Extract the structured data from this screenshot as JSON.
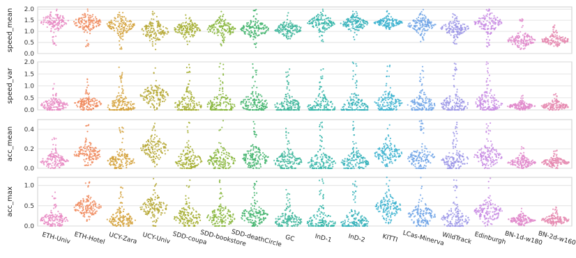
{
  "chart_data": {
    "type": "scatter",
    "style": "swarm/strip plot per dataset",
    "grid": true,
    "categories": [
      "ETH-Univ",
      "ETH-Hotel",
      "UCY-Zara",
      "UCY-Univ",
      "SDD-coupa",
      "SDD-bookstore",
      "SDD-deathCircle",
      "GC",
      "InD-1",
      "InD-2",
      "KITTI",
      "LCas-Minerva",
      "WildTrack",
      "Edinburgh",
      "BN-1d-w180",
      "BN-2d-w160"
    ],
    "colors": [
      "#e78ac3",
      "#f08a5d",
      "#d4a13a",
      "#b5a733",
      "#a3ad2e",
      "#86b53a",
      "#3fb36b",
      "#3cb59a",
      "#33b5a8",
      "#33b0b8",
      "#3bb2cf",
      "#6fa3e6",
      "#9b95e6",
      "#c88be3",
      "#e08acb",
      "#e58ab0"
    ],
    "panels": [
      {
        "ylabel": "speed_mean",
        "ylim": [
          0,
          2.1
        ],
        "yticks": [
          "0.0",
          "0.5",
          "1.0",
          "1.5",
          "2.0"
        ],
        "ytick_values": [
          0,
          0.5,
          1.0,
          1.5,
          2.0
        ],
        "medians": [
          1.45,
          1.4,
          1.3,
          1.0,
          1.1,
          1.1,
          1.1,
          1.1,
          1.4,
          1.35,
          1.4,
          1.3,
          1.15,
          1.4,
          0.6,
          0.6
        ],
        "lows": [
          0.3,
          0.3,
          0.2,
          0.1,
          0.2,
          0.2,
          0.2,
          0.6,
          0.5,
          0.6,
          1.1,
          0.5,
          0.4,
          0.3,
          0.2,
          0.3
        ],
        "highs": [
          2.0,
          2.0,
          2.0,
          2.0,
          1.8,
          2.0,
          2.0,
          1.9,
          2.0,
          2.0,
          2.0,
          2.0,
          1.8,
          2.0,
          1.6,
          1.3
        ]
      },
      {
        "ylabel": "speed_var",
        "ylim": [
          0,
          2.0
        ],
        "yticks": [
          "0.0",
          "0.5",
          "1.0",
          "1.5",
          "2.0"
        ],
        "ytick_values": [
          0,
          0.5,
          1.0,
          1.5,
          2.0
        ],
        "medians": [
          0.2,
          0.25,
          0.15,
          0.6,
          0.2,
          0.2,
          0.25,
          0.15,
          0.1,
          0.1,
          0.25,
          0.2,
          0.2,
          0.3,
          0.15,
          0.15
        ],
        "lows": [
          0.0,
          0.0,
          0.0,
          0.0,
          0.0,
          0.0,
          0.0,
          0.0,
          0.0,
          0.0,
          0.0,
          0.0,
          0.0,
          0.0,
          0.0,
          0.0
        ],
        "highs": [
          1.2,
          1.3,
          1.8,
          2.0,
          1.9,
          2.0,
          2.0,
          1.7,
          2.0,
          2.0,
          1.9,
          1.9,
          2.0,
          2.0,
          0.6,
          0.8
        ]
      },
      {
        "ylabel": "acc_mean",
        "ylim": [
          0,
          0.5
        ],
        "yticks": [
          "0.0",
          "0.2",
          "0.4"
        ],
        "ytick_values": [
          0,
          0.2,
          0.4
        ],
        "medians": [
          0.07,
          0.15,
          0.07,
          0.2,
          0.08,
          0.08,
          0.1,
          0.07,
          0.05,
          0.05,
          0.15,
          0.1,
          0.08,
          0.12,
          0.06,
          0.06
        ],
        "lows": [
          0.0,
          0.03,
          0.0,
          0.0,
          0.0,
          0.0,
          0.0,
          0.0,
          0.0,
          0.0,
          0.02,
          0.0,
          0.0,
          0.0,
          0.0,
          0.0
        ],
        "highs": [
          0.33,
          0.46,
          0.43,
          0.5,
          0.5,
          0.5,
          0.5,
          0.44,
          0.5,
          0.5,
          0.5,
          0.5,
          0.5,
          0.5,
          0.22,
          0.2
        ]
      },
      {
        "ylabel": "acc_max",
        "ylim": [
          0,
          1.2
        ],
        "yticks": [
          "0.0",
          "0.5",
          "1.0"
        ],
        "ytick_values": [
          0,
          0.5,
          1.0
        ],
        "medians": [
          0.15,
          0.45,
          0.15,
          0.45,
          0.2,
          0.2,
          0.25,
          0.12,
          0.08,
          0.08,
          0.45,
          0.25,
          0.15,
          0.35,
          0.15,
          0.15
        ],
        "lows": [
          0.0,
          0.1,
          0.0,
          0.0,
          0.0,
          0.0,
          0.0,
          0.0,
          0.0,
          0.0,
          0.05,
          0.0,
          0.0,
          0.0,
          0.0,
          0.0
        ],
        "highs": [
          0.85,
          1.1,
          1.0,
          1.2,
          1.2,
          1.2,
          1.2,
          1.0,
          1.2,
          1.2,
          1.2,
          1.2,
          1.2,
          1.2,
          0.45,
          0.5
        ]
      }
    ]
  }
}
